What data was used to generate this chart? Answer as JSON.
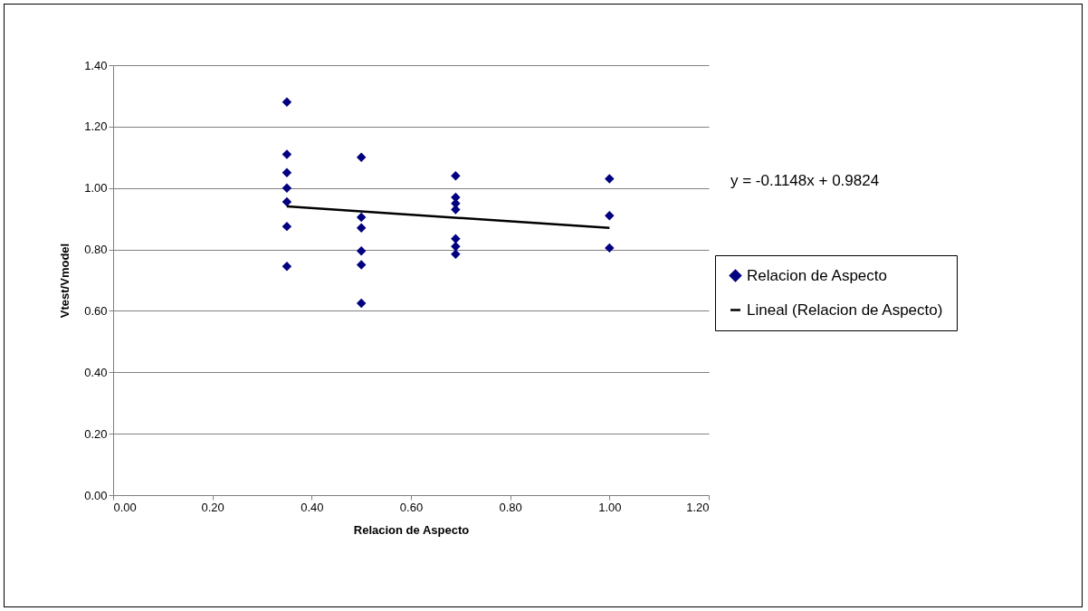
{
  "chart_data": {
    "type": "scatter",
    "xlabel": "Relacion de Aspecto",
    "ylabel": "Vtest/Vmodel",
    "annotations": [
      "y = -0.1148x + 0.9824"
    ],
    "xlim": [
      0,
      1.2
    ],
    "xticks": [
      {
        "value": 0,
        "label": "0.00"
      },
      {
        "value": 0.2,
        "label": "0.20"
      },
      {
        "value": 0.4,
        "label": "0.40"
      },
      {
        "value": 0.6,
        "label": "0.60"
      },
      {
        "value": 0.8,
        "label": "0.80"
      },
      {
        "value": 1,
        "label": "1.00"
      },
      {
        "value": 1.2,
        "label": "1.20"
      }
    ],
    "ylim": [
      0,
      1.4
    ],
    "yticks": [
      {
        "value": 0,
        "label": "0.00"
      },
      {
        "value": 0.2,
        "label": "0.20"
      },
      {
        "value": 0.4,
        "label": "0.40"
      },
      {
        "value": 0.6,
        "label": "0.60"
      },
      {
        "value": 0.8,
        "label": "0.80"
      },
      {
        "value": 1,
        "label": "1.00"
      },
      {
        "value": 1.2,
        "label": "1.20"
      },
      {
        "value": 1.4,
        "label": "1.40"
      }
    ],
    "grid": "y",
    "legend": "right",
    "series": [
      {
        "name": "Relacion de Aspecto",
        "color": "#000080",
        "marker": "diamond",
        "x": [
          0.35,
          0.35,
          0.35,
          0.35,
          0.35,
          0.35,
          0.35,
          0.5,
          0.5,
          0.5,
          0.5,
          0.5,
          0.5,
          0.69,
          0.69,
          0.69,
          0.69,
          0.69,
          0.69,
          0.69,
          1,
          1,
          1
        ],
        "values": [
          1.28,
          1.11,
          1.05,
          1.0,
          0.955,
          0.875,
          0.745,
          1.1,
          0.905,
          0.87,
          0.795,
          0.75,
          0.625,
          1.04,
          0.97,
          0.95,
          0.93,
          0.835,
          0.81,
          0.785,
          1.03,
          0.91,
          0.805
        ]
      },
      {
        "name": "Lineal (Relacion de Aspecto)",
        "type": "line",
        "color": "#000000",
        "x": [
          0.35,
          1
        ],
        "values": [
          0.94,
          0.87
        ],
        "marker": "none"
      }
    ]
  }
}
